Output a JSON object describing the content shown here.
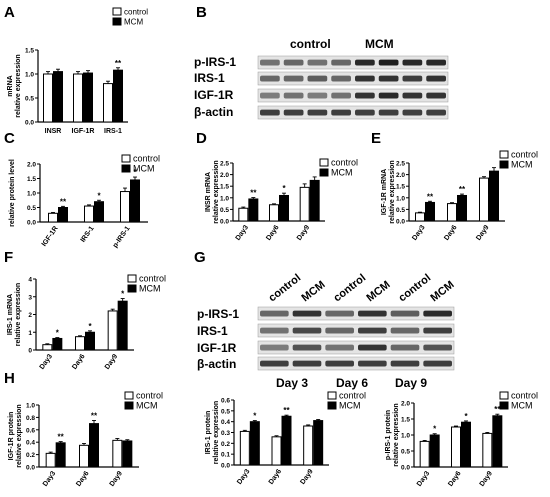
{
  "figure": {
    "panel_letters": [
      "A",
      "B",
      "C",
      "D",
      "E",
      "F",
      "G",
      "H"
    ]
  },
  "chart_data": [
    {
      "panel": "A",
      "type": "bar",
      "ylabel": "mRNA relative expression",
      "ylim": [
        0,
        1.5
      ],
      "yticks": [
        "0.0",
        "0.5",
        "1.0",
        "1.5"
      ],
      "categories": [
        "INSR",
        "IGF-1R",
        "IRS-1"
      ],
      "series": [
        {
          "name": "control",
          "values": [
            1.0,
            1.0,
            0.8
          ],
          "errors": [
            0.05,
            0.05,
            0.05
          ]
        },
        {
          "name": "MCM",
          "values": [
            1.05,
            1.02,
            1.08
          ],
          "errors": [
            0.05,
            0.05,
            0.05
          ]
        }
      ],
      "significance": [
        "",
        "",
        "**"
      ],
      "legend": [
        "control",
        "MCM"
      ]
    },
    {
      "panel": "C",
      "type": "bar",
      "ylabel": "relative protein level",
      "ylim": [
        0,
        2.0
      ],
      "yticks": [
        "0.0",
        "0.5",
        "1.0",
        "1.5",
        "2.0"
      ],
      "categories": [
        "IGF-1R",
        "IRS-1",
        "p-IRS-1"
      ],
      "series": [
        {
          "name": "control",
          "values": [
            0.3,
            0.55,
            1.05
          ],
          "errors": [
            0.03,
            0.04,
            0.12
          ]
        },
        {
          "name": "MCM",
          "values": [
            0.5,
            0.7,
            1.45
          ],
          "errors": [
            0.04,
            0.05,
            0.1
          ]
        }
      ],
      "significance": [
        "**",
        "*",
        "*"
      ],
      "legend": [
        "control",
        "MCM"
      ]
    },
    {
      "panel": "D",
      "type": "bar",
      "ylabel": "INSR mRNA relative expression",
      "ylim": [
        0,
        2.5
      ],
      "yticks": [
        "0.0",
        "0.5",
        "1.0",
        "1.5",
        "2.0",
        "2.5"
      ],
      "categories": [
        "Day3",
        "Day6",
        "Day9"
      ],
      "series": [
        {
          "name": "control",
          "values": [
            0.55,
            0.7,
            1.45
          ],
          "errors": [
            0.05,
            0.04,
            0.15
          ]
        },
        {
          "name": "MCM",
          "values": [
            0.95,
            1.1,
            1.75
          ],
          "errors": [
            0.06,
            0.1,
            0.15
          ]
        }
      ],
      "significance": [
        "**",
        "*",
        ""
      ],
      "legend": [
        "control",
        "MCM"
      ]
    },
    {
      "panel": "E",
      "type": "bar",
      "ylabel": "IGF-1R mRNA relative expression",
      "ylim": [
        0,
        2.5
      ],
      "yticks": [
        "0.0",
        "0.5",
        "1.0",
        "1.5",
        "2.0",
        "2.5"
      ],
      "categories": [
        "Day3",
        "Day6",
        "Day9"
      ],
      "series": [
        {
          "name": "control",
          "values": [
            0.35,
            0.75,
            1.85
          ],
          "errors": [
            0.03,
            0.04,
            0.06
          ]
        },
        {
          "name": "MCM",
          "values": [
            0.8,
            1.1,
            2.15
          ],
          "errors": [
            0.05,
            0.06,
            0.15
          ]
        }
      ],
      "significance": [
        "**",
        "**",
        ""
      ],
      "legend": [
        "control",
        "MCM"
      ]
    },
    {
      "panel": "F",
      "type": "bar",
      "ylabel": "IRS-1 mRNA relative expression",
      "ylim": [
        0,
        4
      ],
      "yticks": [
        "0",
        "1",
        "2",
        "3",
        "4"
      ],
      "categories": [
        "Day3",
        "Day6",
        "Day9"
      ],
      "series": [
        {
          "name": "control",
          "values": [
            0.3,
            0.75,
            2.2
          ],
          "errors": [
            0.05,
            0.05,
            0.1
          ]
        },
        {
          "name": "MCM",
          "values": [
            0.65,
            1.0,
            2.75
          ],
          "errors": [
            0.05,
            0.08,
            0.15
          ]
        }
      ],
      "significance": [
        "*",
        "*",
        "*"
      ],
      "legend": [
        "control",
        "MCM"
      ]
    },
    {
      "panel": "H1",
      "type": "bar",
      "ylabel": "IGF-1R protein relative expression",
      "ylim": [
        0,
        1.0
      ],
      "yticks": [
        "0.0",
        "0.2",
        "0.4",
        "0.6",
        "0.8",
        "1.0"
      ],
      "categories": [
        "Day3",
        "Day6",
        "Day9"
      ],
      "series": [
        {
          "name": "control",
          "values": [
            0.22,
            0.35,
            0.43
          ],
          "errors": [
            0.02,
            0.03,
            0.03
          ]
        },
        {
          "name": "MCM",
          "values": [
            0.39,
            0.7,
            0.42
          ],
          "errors": [
            0.02,
            0.05,
            0.02
          ]
        }
      ],
      "significance": [
        "**",
        "**",
        ""
      ],
      "legend": [
        "control",
        "MCM"
      ]
    },
    {
      "panel": "H2",
      "type": "bar",
      "ylabel": "IRS-1 protein relative expression",
      "ylim": [
        0,
        0.6
      ],
      "yticks": [
        "0.0",
        "0.1",
        "0.2",
        "0.3",
        "0.4",
        "0.5",
        "0.6"
      ],
      "categories": [
        "Day3",
        "Day6",
        "Day9"
      ],
      "series": [
        {
          "name": "control",
          "values": [
            0.31,
            0.26,
            0.36
          ],
          "errors": [
            0.01,
            0.01,
            0.01
          ]
        },
        {
          "name": "MCM",
          "values": [
            0.4,
            0.45,
            0.41
          ],
          "errors": [
            0.01,
            0.01,
            0.01
          ]
        }
      ],
      "significance": [
        "*",
        "**",
        ""
      ],
      "legend": [
        "control",
        "MCM"
      ]
    },
    {
      "panel": "H3",
      "type": "bar",
      "ylabel": "p-IRS-1 protein relative expression",
      "ylim": [
        0,
        2.0
      ],
      "yticks": [
        "0.0",
        "0.5",
        "1.0",
        "1.5",
        "2.0"
      ],
      "categories": [
        "Day3",
        "Day6",
        "Day9"
      ],
      "series": [
        {
          "name": "control",
          "values": [
            0.8,
            1.25,
            1.05
          ],
          "errors": [
            0.03,
            0.03,
            0.03
          ]
        },
        {
          "name": "MCM",
          "values": [
            1.0,
            1.4,
            1.6
          ],
          "errors": [
            0.04,
            0.04,
            0.05
          ]
        }
      ],
      "significance": [
        "*",
        "*",
        "**"
      ],
      "legend": [
        "control",
        "MCM"
      ]
    }
  ],
  "blot_B": {
    "column_labels": [
      "control",
      "MCM"
    ],
    "row_labels": [
      "p-IRS-1",
      "IRS-1",
      "IGF-1R",
      "β-actin"
    ]
  },
  "blot_G": {
    "column_labels": [
      "control",
      "MCM",
      "control",
      "MCM",
      "control",
      "MCM"
    ],
    "row_labels": [
      "p-IRS-1",
      "IRS-1",
      "IGF-1R",
      "β-actin"
    ],
    "day_labels": [
      "Day 3",
      "Day 6",
      "Day 9"
    ]
  }
}
